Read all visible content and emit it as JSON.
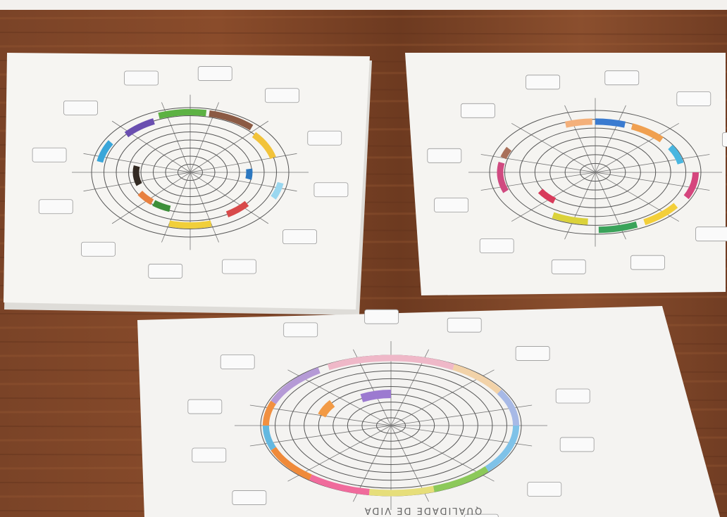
{
  "bottom_sheet": {
    "title": "QUALIDADE DE VIDA"
  }
}
